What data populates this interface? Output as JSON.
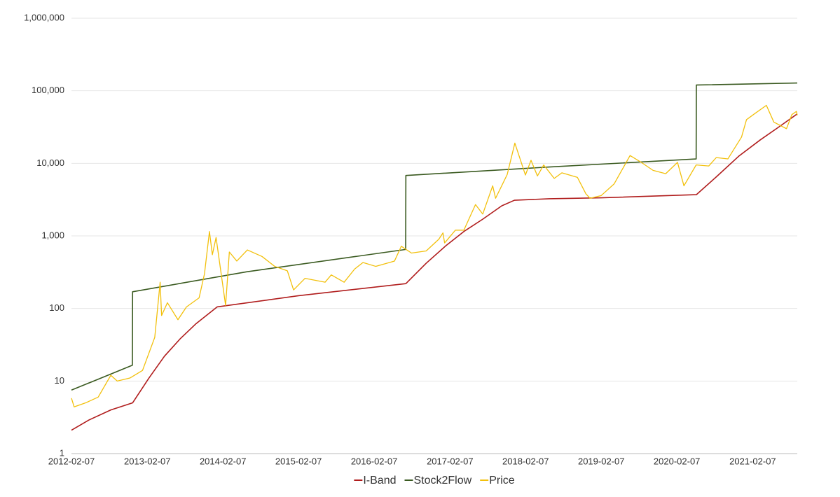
{
  "chart_data": {
    "type": "line",
    "log_scale": true,
    "grid": true,
    "legend_position": "bottom",
    "ylim": [
      1,
      1000000
    ],
    "yticks": [
      1,
      10,
      100,
      {
        "value": 1000,
        "label": "1,000"
      },
      {
        "value": 10000,
        "label": "10,000"
      },
      {
        "value": 100000,
        "label": "100,000"
      },
      {
        "value": 1000000,
        "label": "1,000,000"
      }
    ],
    "xlim": [
      "2012-02-07",
      "2021-09-10"
    ],
    "xticks": [
      "2012-02-07",
      "2013-02-07",
      "2014-02-07",
      "2015-02-07",
      "2016-02-07",
      "2017-02-07",
      "2018-02-07",
      "2019-02-07",
      "2020-02-07",
      "2021-02-07"
    ],
    "series": [
      {
        "name": "I-Band",
        "color": "#b01c1c",
        "x": [
          "2012-02-07",
          "2012-05-01",
          "2012-08-15",
          "2012-11-28",
          "2013-02-15",
          "2013-05-01",
          "2013-07-15",
          "2013-10-01",
          "2014-01-10",
          "2015-02-07",
          "2016-07-09",
          "2016-10-15",
          "2017-01-15",
          "2017-04-15",
          "2017-07-15",
          "2017-10-15",
          "2017-12-15",
          "2018-06-01",
          "2019-02-07",
          "2020-05-11",
          "2020-08-15",
          "2020-12-01",
          "2021-03-15",
          "2021-06-15",
          "2021-09-10"
        ],
        "values": [
          2.1,
          2.9,
          4.0,
          5.0,
          11,
          22,
          38,
          62,
          105,
          150,
          220,
          420,
          720,
          1150,
          1700,
          2600,
          3100,
          3250,
          3350,
          3700,
          6500,
          12500,
          21000,
          32000,
          48000
        ]
      },
      {
        "name": "Stock2Flow",
        "color": "#3a5a20",
        "x": [
          "2012-02-07",
          "2012-11-27",
          "2012-11-28",
          "2014-06-01",
          "2016-07-08",
          "2016-07-09",
          "2018-06-01",
          "2020-05-10",
          "2020-05-11",
          "2021-09-10"
        ],
        "values": [
          7.5,
          16.5,
          170,
          320,
          650,
          6800,
          8900,
          11500,
          120000,
          128000
        ]
      },
      {
        "name": "Price",
        "color": "#f2c00c",
        "x": [
          "2012-02-07",
          "2012-02-20",
          "2012-04-15",
          "2012-06-15",
          "2012-08-15",
          "2012-09-15",
          "2012-11-15",
          "2013-01-15",
          "2013-03-15",
          "2013-04-10",
          "2013-04-17",
          "2013-05-15",
          "2013-07-05",
          "2013-08-15",
          "2013-10-15",
          "2013-11-10",
          "2013-12-04",
          "2013-12-18",
          "2014-01-05",
          "2014-02-20",
          "2014-03-10",
          "2014-04-15",
          "2014-06-05",
          "2014-08-15",
          "2014-10-15",
          "2014-12-15",
          "2015-01-14",
          "2015-03-10",
          "2015-06-15",
          "2015-07-15",
          "2015-09-15",
          "2015-11-05",
          "2015-12-15",
          "2016-02-15",
          "2016-05-15",
          "2016-06-17",
          "2016-08-05",
          "2016-10-15",
          "2016-12-15",
          "2017-01-04",
          "2017-01-12",
          "2017-03-05",
          "2017-04-15",
          "2017-06-10",
          "2017-07-15",
          "2017-09-01",
          "2017-09-15",
          "2017-11-10",
          "2017-12-17",
          "2018-02-06",
          "2018-03-05",
          "2018-04-05",
          "2018-05-05",
          "2018-06-25",
          "2018-08-01",
          "2018-10-15",
          "2018-11-25",
          "2018-12-15",
          "2019-02-07",
          "2019-04-10",
          "2019-06-26",
          "2019-08-15",
          "2019-10-15",
          "2019-12-15",
          "2020-02-10",
          "2020-03-12",
          "2020-05-10",
          "2020-07-10",
          "2020-08-15",
          "2020-10-10",
          "2020-12-15",
          "2021-01-08",
          "2021-02-15",
          "2021-04-14",
          "2021-05-20",
          "2021-07-20",
          "2021-08-15",
          "2021-09-06",
          "2021-09-10"
        ],
        "values": [
          5.8,
          4.4,
          5.0,
          6.0,
          12,
          10,
          11,
          14,
          40,
          230,
          80,
          120,
          70,
          105,
          140,
          300,
          1150,
          550,
          950,
          110,
          600,
          450,
          640,
          520,
          380,
          330,
          180,
          260,
          230,
          290,
          230,
          350,
          430,
          380,
          450,
          720,
          580,
          620,
          900,
          1100,
          800,
          1200,
          1200,
          2700,
          2000,
          4900,
          3300,
          7000,
          19000,
          6900,
          11000,
          6700,
          9500,
          6200,
          7400,
          6400,
          3800,
          3300,
          3600,
          5200,
          12800,
          10500,
          8000,
          7200,
          10300,
          4900,
          9500,
          9200,
          12000,
          11500,
          23000,
          40000,
          48000,
          63000,
          37000,
          30000,
          47000,
          52000,
          46000
        ]
      }
    ]
  }
}
